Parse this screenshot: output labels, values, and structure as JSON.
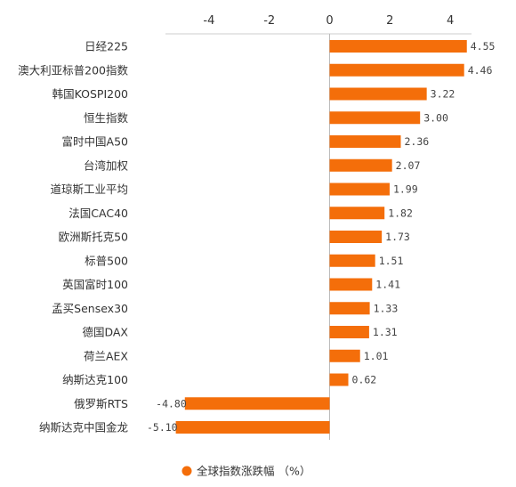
{
  "chart_data": {
    "type": "bar",
    "orientation": "horizontal",
    "categories": [
      "日经225",
      "澳大利亚标普200指数",
      "韩国KOSPI200",
      "恒生指数",
      "富时中国A50",
      "台湾加权",
      "道琼斯工业平均",
      "法国CAC40",
      "欧洲斯托克50",
      "标普500",
      "英国富时100",
      "孟买Sensex30",
      "德国DAX",
      "荷兰AEX",
      "纳斯达克100",
      "俄罗斯RTS",
      "纳斯达克中国金龙"
    ],
    "values": [
      4.55,
      4.46,
      3.22,
      3.0,
      2.36,
      2.07,
      1.99,
      1.82,
      1.73,
      1.51,
      1.41,
      1.33,
      1.31,
      1.01,
      0.62,
      -4.8,
      -5.1
    ],
    "value_labels": [
      "4.55",
      "4.46",
      "3.22",
      "3.00",
      "2.36",
      "2.07",
      "1.99",
      "1.82",
      "1.73",
      "1.51",
      "1.41",
      "1.33",
      "1.31",
      "1.01",
      "0.62",
      "-4.80",
      "-5.10"
    ],
    "xlim": [
      -5.4,
      4.6
    ],
    "xticks": [
      -4,
      -2,
      0,
      2,
      4
    ],
    "xtick_labels": [
      "-4",
      "-2",
      "0",
      "2",
      "4"
    ],
    "axis_position": "top",
    "grid": false,
    "legend_position": "bottom-center",
    "series": [
      {
        "name": "全球指数涨跌幅 （%）",
        "color": "#f46e0a"
      }
    ]
  }
}
